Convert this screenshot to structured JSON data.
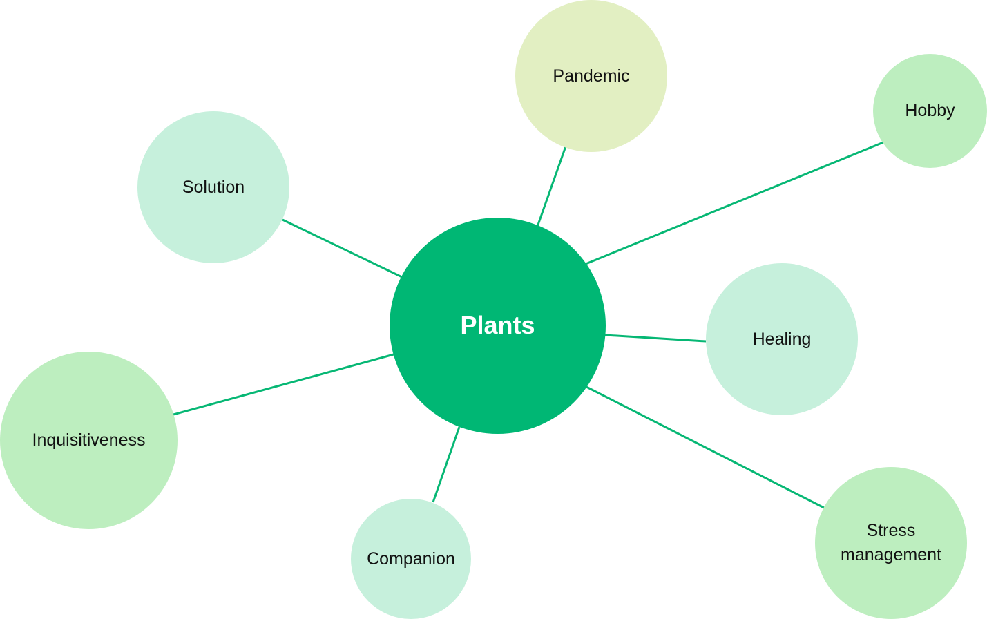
{
  "diagram": {
    "center": {
      "label": "Plants"
    },
    "topics": [
      {
        "id": "pandemic",
        "label": "Pandemic",
        "color": "#e2efc2"
      },
      {
        "id": "hobby",
        "label": "Hobby",
        "color": "#bdeebf"
      },
      {
        "id": "solution",
        "label": "Solution",
        "color": "#c6f0dc"
      },
      {
        "id": "healing",
        "label": "Healing",
        "color": "#c6f0dc"
      },
      {
        "id": "inquisitiveness",
        "label": "Inquisitiveness",
        "color": "#bdeebf"
      },
      {
        "id": "companion",
        "label": "Companion",
        "color": "#c6f0dc"
      },
      {
        "id": "stress",
        "label": "Stress\nmanagement",
        "color": "#bdeebf"
      }
    ],
    "colors": {
      "center_fill": "#00b774",
      "connector": "#06b774"
    }
  }
}
